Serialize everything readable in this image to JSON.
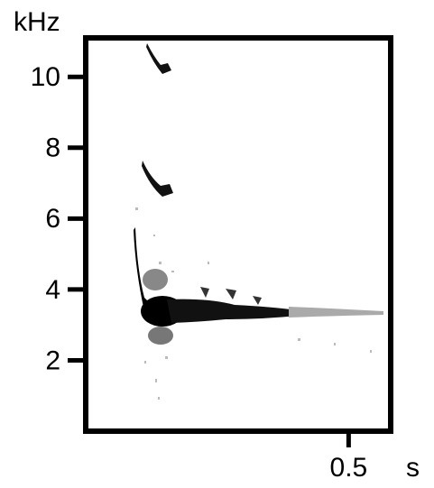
{
  "chart_data": {
    "type": "spectrogram",
    "y_unit": "kHz",
    "x_unit": "s",
    "ylim": [
      0,
      11.1
    ],
    "yticks": [
      2,
      4,
      6,
      8,
      10
    ],
    "xlim": [
      0,
      0.58
    ],
    "xticks": [
      0.5
    ]
  }
}
